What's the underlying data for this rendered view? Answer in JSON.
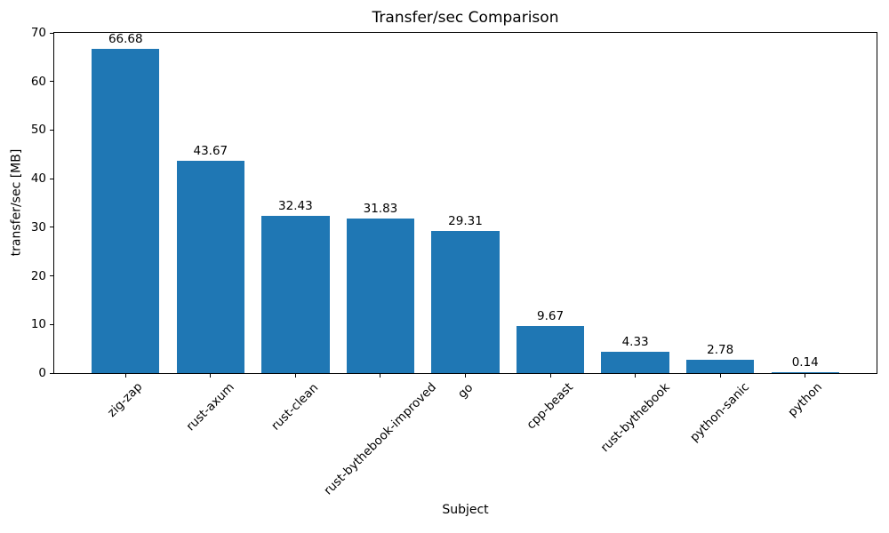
{
  "chart_data": {
    "type": "bar",
    "title": "Transfer/sec Comparison",
    "xlabel": "Subject",
    "ylabel": "transfer/sec [MB]",
    "categories": [
      "zig-zap",
      "rust-axum",
      "rust-clean",
      "rust-bythebook-improved",
      "go",
      "cpp-beast",
      "rust-bythebook",
      "python-sanic",
      "python"
    ],
    "values": [
      66.68,
      43.67,
      32.43,
      31.83,
      29.31,
      9.67,
      4.33,
      2.78,
      0.14
    ],
    "value_labels": [
      "66.68",
      "43.67",
      "32.43",
      "31.83",
      "29.31",
      "9.67",
      "4.33",
      "2.78",
      "0.14"
    ],
    "ylim": [
      0,
      70
    ],
    "yticks": [
      0,
      10,
      20,
      30,
      40,
      50,
      60,
      70
    ],
    "bar_color": "#1f77b4",
    "grid": false,
    "legend_position": "none",
    "x_tick_rotation_deg": 45
  }
}
